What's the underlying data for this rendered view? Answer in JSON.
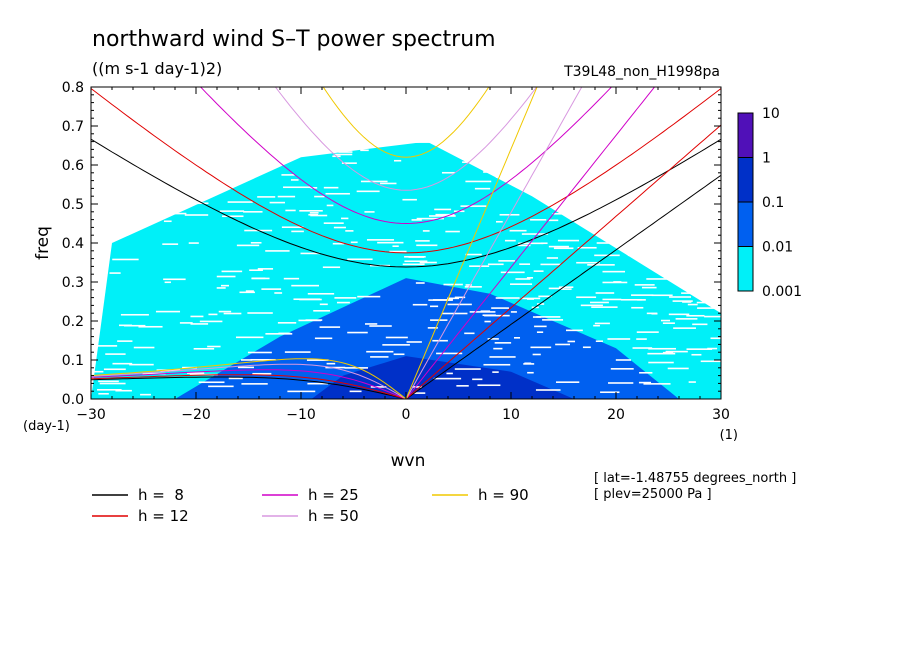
{
  "chart_data": {
    "type": "heatmap",
    "title": "northward wind S–T power spectrum",
    "units": "((m s-1 day-1)2)",
    "run_name": "T39L48_non_H1998pa",
    "xlabel": "wvn",
    "ylabel": "freq",
    "x_unit": "(1)",
    "y_unit": "(day-1)",
    "xlim": [
      -30,
      30
    ],
    "ylim": [
      0,
      0.8
    ],
    "x_ticks": [
      -30,
      -20,
      -10,
      0,
      10,
      20,
      30
    ],
    "x_tick_labels": [
      "−30",
      "−20",
      "−10",
      "0",
      "10",
      "20",
      "30"
    ],
    "y_ticks": [
      0,
      0.1,
      0.2,
      0.3,
      0.4,
      0.5,
      0.6,
      0.7,
      0.8
    ],
    "y_tick_labels": [
      "0.0",
      "0.1",
      "0.2",
      "0.3",
      "0.4",
      "0.5",
      "0.6",
      "0.7",
      "0.8"
    ],
    "colorbar": {
      "levels": [
        "0.001",
        "0.01",
        "0.1",
        "1",
        "10"
      ],
      "colors": [
        "#00f0f8",
        "#0060f0",
        "#0030c8",
        "#5010b8"
      ]
    },
    "power_regions": [
      {
        "level": "0.001-0.01",
        "color": "#00f0f8",
        "description_points": [
          [
            -30,
            0.0
          ],
          [
            30,
            0.0
          ],
          [
            30,
            0.22
          ],
          [
            12,
            0.52
          ],
          [
            2,
            0.66
          ],
          [
            -10,
            0.62
          ],
          [
            -28,
            0.4
          ]
        ]
      },
      {
        "level": "0.01-0.1",
        "color": "#0060f0",
        "description_points": [
          [
            -22,
            0.0
          ],
          [
            26,
            0.0
          ],
          [
            20,
            0.13
          ],
          [
            8,
            0.27
          ],
          [
            0,
            0.31
          ],
          [
            -12,
            0.16
          ]
        ]
      },
      {
        "level": "0.1-1",
        "color": "#0030c8",
        "description_points": [
          [
            -9,
            0.0
          ],
          [
            16,
            0.0
          ],
          [
            10,
            0.07
          ],
          [
            0,
            0.11
          ],
          [
            -6,
            0.06
          ]
        ]
      }
    ],
    "dispersion_curves": [
      {
        "name": "h =  8",
        "h": 8,
        "color": "#000000"
      },
      {
        "name": "h = 12",
        "h": 12,
        "color": "#e00000"
      },
      {
        "name": "h = 25",
        "h": 25,
        "color": "#d000c8"
      },
      {
        "name": "h = 50",
        "h": 50,
        "color": "#d898e0"
      },
      {
        "name": "h = 90",
        "h": 90,
        "color": "#f0c800"
      }
    ],
    "annotations": [
      "[ lat=-1.48755 degrees_north ]",
      "[ plev=25000 Pa ]"
    ]
  }
}
